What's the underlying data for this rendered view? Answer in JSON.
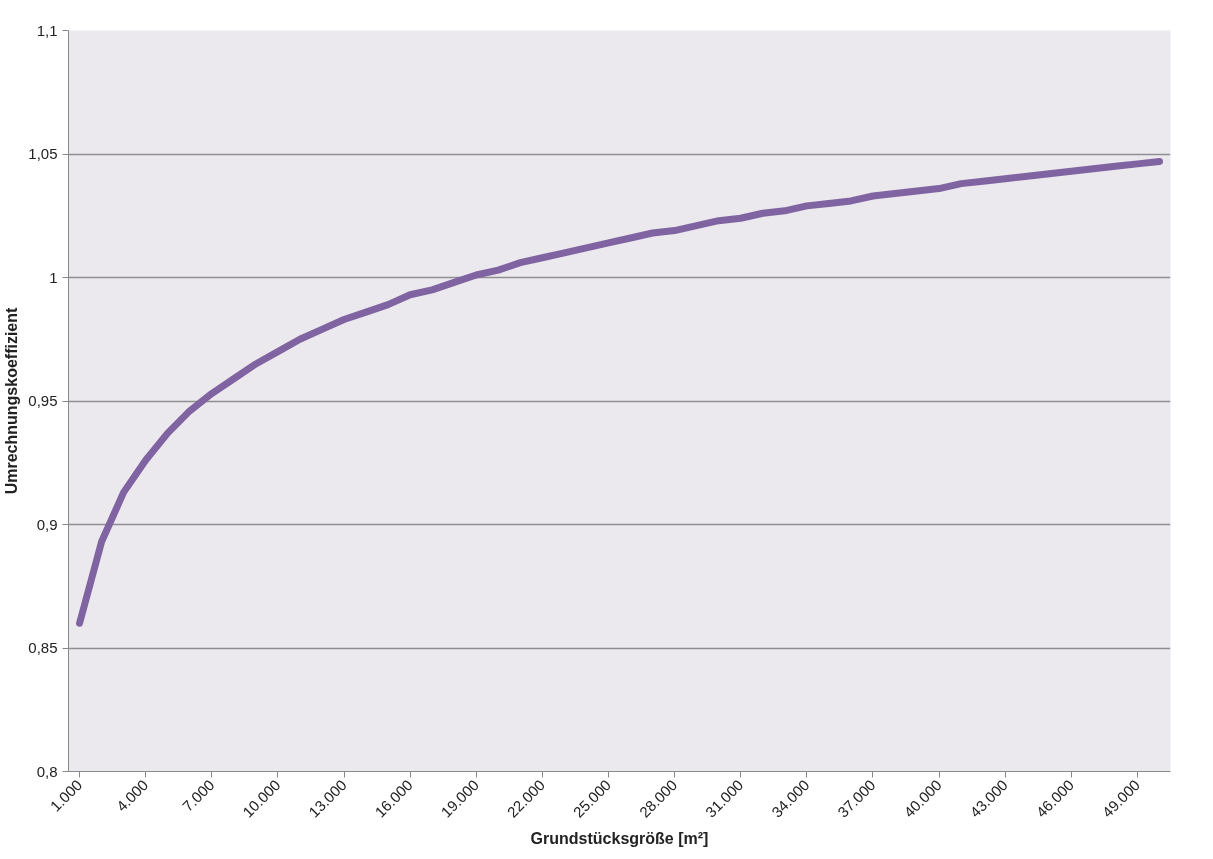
{
  "chart_data": {
    "type": "line",
    "xlabel": "Grundstücksgröße [m²]",
    "ylabel": "Umrechnungskoeffizient",
    "x": [
      1000,
      2000,
      3000,
      4000,
      5000,
      6000,
      7000,
      8000,
      9000,
      10000,
      11000,
      12000,
      13000,
      14000,
      15000,
      16000,
      17000,
      18000,
      19000,
      20000,
      21000,
      22000,
      23000,
      24000,
      25000,
      26000,
      27000,
      28000,
      29000,
      30000,
      31000,
      32000,
      33000,
      34000,
      35000,
      36000,
      37000,
      38000,
      39000,
      40000,
      41000,
      42000,
      43000,
      44000,
      45000,
      46000,
      47000,
      48000,
      49000,
      50000
    ],
    "series": [
      {
        "color": "#8064a2",
        "values": [
          0.86,
          0.893,
          0.913,
          0.926,
          0.937,
          0.946,
          0.953,
          0.959,
          0.965,
          0.97,
          0.975,
          0.979,
          0.983,
          0.986,
          0.989,
          0.993,
          0.995,
          0.998,
          1.001,
          1.003,
          1.006,
          1.008,
          1.01,
          1.012,
          1.014,
          1.016,
          1.018,
          1.019,
          1.021,
          1.023,
          1.024,
          1.026,
          1.027,
          1.029,
          1.03,
          1.031,
          1.033,
          1.034,
          1.035,
          1.036,
          1.038,
          1.039,
          1.04,
          1.041,
          1.042,
          1.043,
          1.044,
          1.045,
          1.046,
          1.047
        ]
      }
    ],
    "xlim": [
      500,
      50500
    ],
    "xticks": [
      {
        "value": 1000,
        "label": "1.000"
      },
      {
        "value": 4000,
        "label": "4.000"
      },
      {
        "value": 7000,
        "label": "7.000"
      },
      {
        "value": 10000,
        "label": "10.000"
      },
      {
        "value": 13000,
        "label": "13.000"
      },
      {
        "value": 16000,
        "label": "16.000"
      },
      {
        "value": 19000,
        "label": "19.000"
      },
      {
        "value": 22000,
        "label": "22.000"
      },
      {
        "value": 25000,
        "label": "25.000"
      },
      {
        "value": 28000,
        "label": "28.000"
      },
      {
        "value": 31000,
        "label": "31.000"
      },
      {
        "value": 34000,
        "label": "34.000"
      },
      {
        "value": 37000,
        "label": "37.000"
      },
      {
        "value": 40000,
        "label": "40.000"
      },
      {
        "value": 43000,
        "label": "43.000"
      },
      {
        "value": 46000,
        "label": "46.000"
      },
      {
        "value": 49000,
        "label": "49.000"
      }
    ],
    "ylim": [
      0.8,
      1.1
    ],
    "yticks": [
      {
        "value": 0.8,
        "label": "0,8"
      },
      {
        "value": 0.85,
        "label": "0,85"
      },
      {
        "value": 0.9,
        "label": "0,9"
      },
      {
        "value": 0.95,
        "label": "0,95"
      },
      1,
      {
        "value": 1.05,
        "label": "1,05"
      },
      {
        "value": 1.1,
        "label": "1,1"
      }
    ],
    "grid": "y",
    "marker": "none",
    "line_style": "solid"
  }
}
